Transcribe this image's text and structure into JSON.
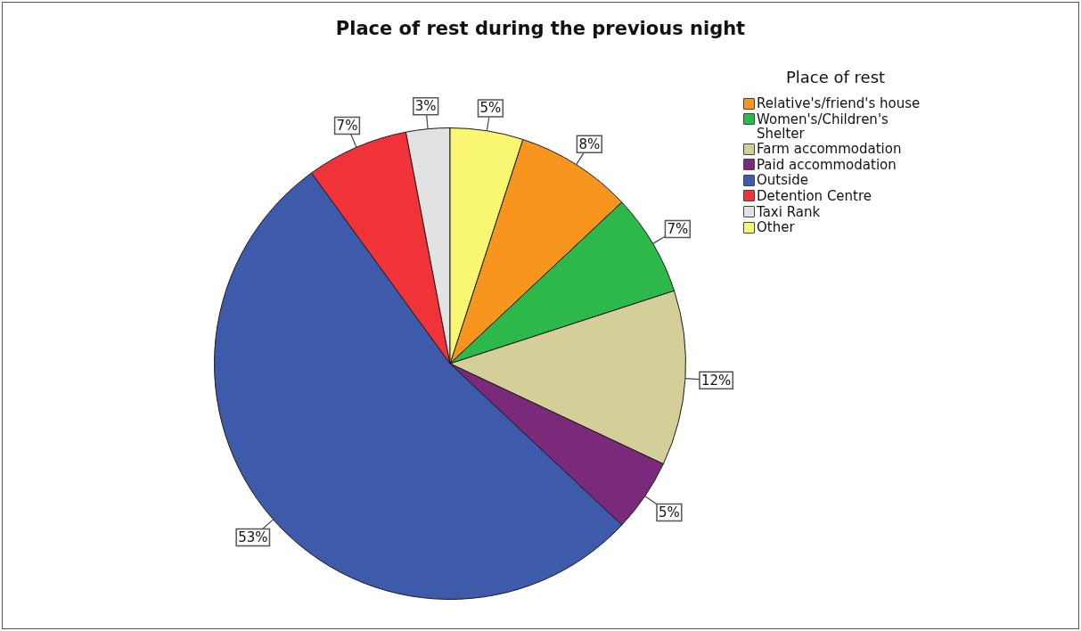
{
  "chart_data": {
    "type": "pie",
    "title": "Place of rest during the previous night",
    "legend_title": "Place of rest",
    "categories": [
      "Relative's/friend's house",
      "Women's/Children's Shelter",
      "Farm accommodation",
      "Paid accommodation",
      "Outside",
      "Detention Centre",
      "Taxi Rank",
      "Other"
    ],
    "values": [
      8,
      7,
      12,
      5,
      53,
      7,
      3,
      5
    ],
    "colors": [
      "#f7951e",
      "#2db84a",
      "#d4cf99",
      "#7b2a7b",
      "#3d5aab",
      "#ef3339",
      "#e2e2e2",
      "#f9f672"
    ],
    "value_labels": [
      "8%",
      "7%",
      "12%",
      "5%",
      "53%",
      "7%",
      "3%",
      "5%"
    ],
    "legend": "top right"
  }
}
